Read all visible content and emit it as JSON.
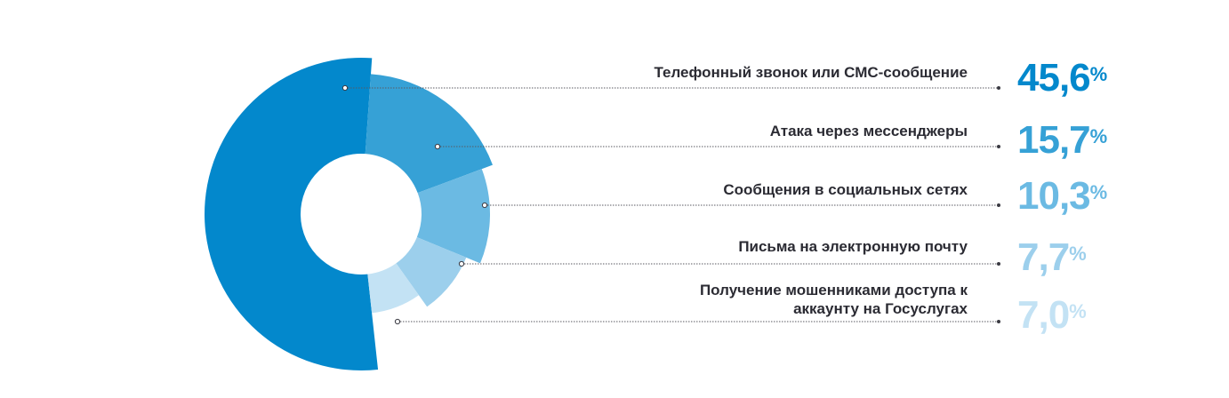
{
  "chart_data": {
    "type": "pie",
    "variant": "donut, radial lengths vary",
    "categories": [
      "Телефонный звонок или СМС-сообщение",
      "Атака через мессенджеры",
      "Сообщения в социальных сетях",
      "Письма на электронную почту",
      "Получение мошенниками доступа к аккаунту на Госуслугах"
    ],
    "values": [
      45.6,
      15.7,
      10.3,
      7.7,
      7.0
    ],
    "value_labels": [
      "45,6",
      "15,7",
      "10,3",
      "7,7",
      "7,0"
    ],
    "percent_sign": "%",
    "colors": [
      "#0388cc",
      "#36a1d6",
      "#6bbae3",
      "#9ccfec",
      "#c3e2f4"
    ]
  }
}
